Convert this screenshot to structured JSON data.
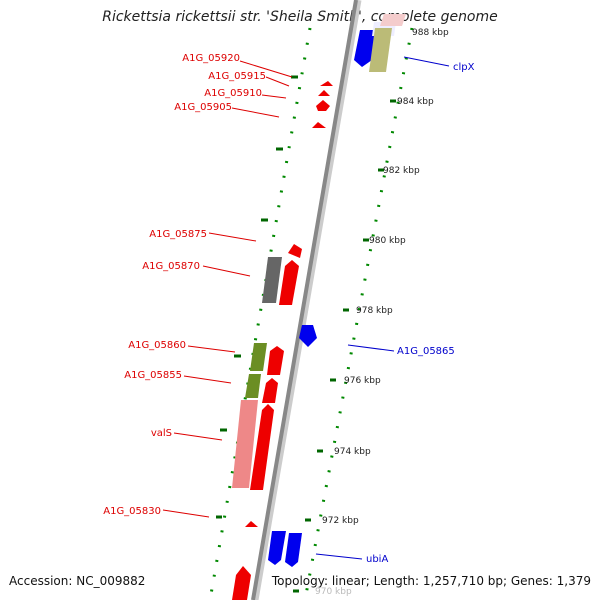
{
  "title": "Rickettsia rickettsii str. 'Sheila Smith', complete genome",
  "accession_line": "Accession: NC_009882",
  "summary_line": "Topology: linear; Length: 1,257,710 bp; Genes: 1,379",
  "colors": {
    "left_label": "#dd0000",
    "right_label": "#0000cc",
    "backbone": "#999999",
    "tick": "#006600",
    "forward_gene": "#ff0000",
    "reverse_gene": "#0000ee",
    "gray_gene": "#777777",
    "olive_gene": "#669922",
    "pink_gene": "#ee8888",
    "khaki_gene": "#bbbb77"
  },
  "scale_labels": [
    "988 kbp",
    "984 kbp",
    "982 kbp",
    "980 kbp",
    "978 kbp",
    "976 kbp",
    "974 kbp",
    "972 kbp",
    "970 kbp"
  ],
  "left_labels": [
    "A1G_05920",
    "A1G_05915",
    "A1G_05910",
    "A1G_05905",
    "A1G_05875",
    "A1G_05870",
    "A1G_05860",
    "A1G_05855",
    "valS",
    "A1G_05830"
  ],
  "right_labels": [
    "clpX",
    "A1G_05865",
    "ubiA"
  ]
}
